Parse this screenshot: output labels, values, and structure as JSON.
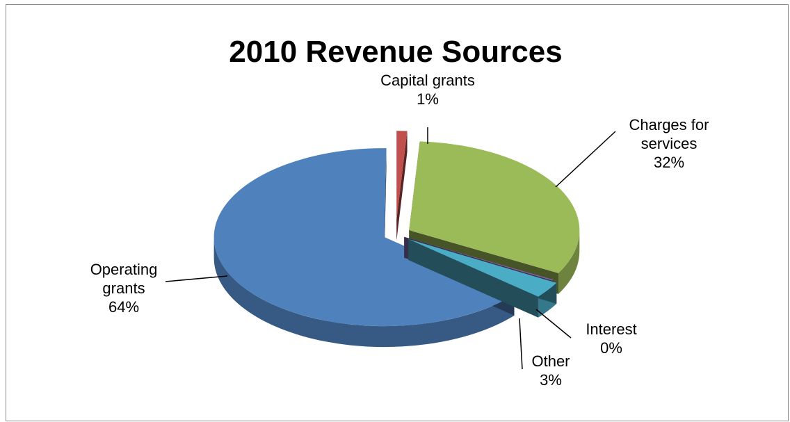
{
  "chart_data": {
    "type": "pie",
    "title": "2010 Revenue Sources",
    "three_d": true,
    "exploded": true,
    "slices": [
      {
        "name": "Capital grants",
        "value": 1,
        "label_percent": "1%",
        "color": "#c0504d",
        "label_lines": [
          "Capital grants",
          "1%"
        ]
      },
      {
        "name": "Charges for services",
        "value": 32,
        "label_percent": "32%",
        "color": "#9bbb59",
        "label_lines": [
          "Charges for",
          "services",
          "32%"
        ]
      },
      {
        "name": "Interest",
        "value": 0,
        "label_percent": "0%",
        "color": "#8064a2",
        "label_lines": [
          "Interest",
          "0%"
        ]
      },
      {
        "name": "Other",
        "value": 3,
        "label_percent": "3%",
        "color": "#4bacc6",
        "label_lines": [
          "Other",
          "3%"
        ]
      },
      {
        "name": "Operating grants",
        "value": 64,
        "label_percent": "64%",
        "color": "#4f81bd",
        "label_lines": [
          "Operating",
          "grants",
          "64%"
        ]
      }
    ],
    "legend": "none"
  }
}
